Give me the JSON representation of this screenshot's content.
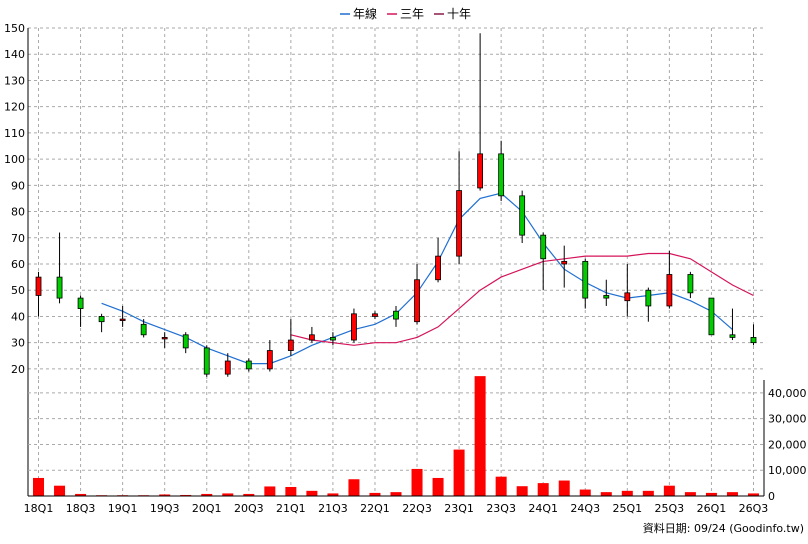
{
  "legend": {
    "items": [
      {
        "label": "年線",
        "color": "#1f6fd1"
      },
      {
        "label": "三年",
        "color": "#d4145a"
      },
      {
        "label": "十年",
        "color": "#8b1a4a"
      }
    ]
  },
  "footer": {
    "source": "資料日期: 09/24  (Goodinfo.tw)"
  },
  "colors": {
    "up": "#ff0000",
    "down": "#00cc00",
    "volume": "#ff0000",
    "grid": "#aaaaaa",
    "year_line": "#1f6fd1",
    "three_year_line": "#d4145a"
  },
  "chart_data": [
    {
      "type": "candlestick",
      "title": "",
      "ylim": [
        15,
        150
      ],
      "yticks": [
        20,
        30,
        40,
        50,
        60,
        70,
        80,
        90,
        100,
        110,
        120,
        130,
        140,
        150
      ],
      "grid": true,
      "legend_position": "top-center",
      "x_tick_labels": [
        "18Q1",
        "18Q3",
        "19Q1",
        "19Q3",
        "20Q1",
        "20Q3",
        "21Q1",
        "21Q3",
        "22Q1",
        "22Q3",
        "23Q1",
        "23Q3",
        "24Q1",
        "24Q3",
        "25Q1",
        "25Q3",
        "26Q1",
        "26Q3"
      ],
      "quarters": [
        {
          "q": "18Q1",
          "o": 48,
          "h": 57,
          "l": 40,
          "c": 55
        },
        {
          "q": "18Q2",
          "o": 55,
          "h": 72,
          "l": 45,
          "c": 47
        },
        {
          "q": "18Q3",
          "o": 47,
          "h": 48,
          "l": 36,
          "c": 43
        },
        {
          "q": "18Q4",
          "o": 40,
          "h": 41,
          "l": 34,
          "c": 38
        },
        {
          "q": "19Q1",
          "o": 39,
          "h": 44,
          "l": 36,
          "c": 39
        },
        {
          "q": "19Q2",
          "o": 37,
          "h": 39,
          "l": 32,
          "c": 33
        },
        {
          "q": "19Q3",
          "o": 32,
          "h": 34,
          "l": 28,
          "c": 32
        },
        {
          "q": "19Q4",
          "o": 33,
          "h": 34,
          "l": 26,
          "c": 28
        },
        {
          "q": "20Q1",
          "o": 28,
          "h": 29,
          "l": 17,
          "c": 18
        },
        {
          "q": "20Q2",
          "o": 18,
          "h": 26,
          "l": 17,
          "c": 23
        },
        {
          "q": "20Q3",
          "o": 23,
          "h": 24,
          "l": 19,
          "c": 20
        },
        {
          "q": "20Q4",
          "o": 20,
          "h": 31,
          "l": 19,
          "c": 27
        },
        {
          "q": "21Q1",
          "o": 27,
          "h": 39,
          "l": 25,
          "c": 31
        },
        {
          "q": "21Q2",
          "o": 31,
          "h": 36,
          "l": 30,
          "c": 33
        },
        {
          "q": "21Q3",
          "o": 32,
          "h": 34,
          "l": 29,
          "c": 31
        },
        {
          "q": "21Q4",
          "o": 31,
          "h": 43,
          "l": 30,
          "c": 41
        },
        {
          "q": "22Q1",
          "o": 40,
          "h": 42,
          "l": 39,
          "c": 41
        },
        {
          "q": "22Q2",
          "o": 42,
          "h": 44,
          "l": 36,
          "c": 39
        },
        {
          "q": "22Q3",
          "o": 38,
          "h": 60,
          "l": 37,
          "c": 54
        },
        {
          "q": "22Q4",
          "o": 54,
          "h": 70,
          "l": 53,
          "c": 63
        },
        {
          "q": "23Q1",
          "o": 63,
          "h": 103,
          "l": 60,
          "c": 88
        },
        {
          "q": "23Q2",
          "o": 89,
          "h": 148,
          "l": 88,
          "c": 102
        },
        {
          "q": "23Q3",
          "o": 102,
          "h": 107,
          "l": 84,
          "c": 86
        },
        {
          "q": "23Q4",
          "o": 86,
          "h": 88,
          "l": 68,
          "c": 71
        },
        {
          "q": "24Q1",
          "o": 71,
          "h": 72,
          "l": 50,
          "c": 62
        },
        {
          "q": "24Q2",
          "o": 60,
          "h": 67,
          "l": 51,
          "c": 61
        },
        {
          "q": "24Q3",
          "o": 61,
          "h": 62,
          "l": 43,
          "c": 47
        },
        {
          "q": "24Q4",
          "o": 48,
          "h": 54,
          "l": 44,
          "c": 47
        },
        {
          "q": "25Q1",
          "o": 46,
          "h": 60,
          "l": 40,
          "c": 49
        },
        {
          "q": "25Q2",
          "o": 50,
          "h": 51,
          "l": 38,
          "c": 44
        },
        {
          "q": "25Q3",
          "o": 44,
          "h": 65,
          "l": 43,
          "c": 56
        },
        {
          "q": "25Q4",
          "o": 56,
          "h": 57,
          "l": 47,
          "c": 49
        },
        {
          "q": "26Q1",
          "o": 47,
          "h": 47,
          "l": 33,
          "c": 33
        },
        {
          "q": "26Q2",
          "o": 33,
          "h": 43,
          "l": 31,
          "c": 32
        },
        {
          "q": "26Q3",
          "o": 32,
          "h": 37,
          "l": 29,
          "c": 30
        }
      ],
      "series": [
        {
          "name": "年線",
          "values": [
            null,
            null,
            null,
            45,
            42,
            38,
            35,
            32,
            28,
            25,
            22,
            22,
            25,
            29,
            32,
            35,
            37,
            41,
            49,
            61,
            77,
            85,
            87,
            80,
            68,
            58,
            53,
            49,
            47,
            48,
            49,
            46,
            42,
            35,
            null
          ]
        },
        {
          "name": "三年",
          "values": [
            null,
            null,
            null,
            null,
            null,
            null,
            null,
            null,
            null,
            null,
            null,
            null,
            33,
            31,
            30,
            29,
            30,
            30,
            32,
            36,
            43,
            50,
            55,
            58,
            61,
            62,
            63,
            63,
            63,
            64,
            64,
            62,
            57,
            52,
            48
          ]
        }
      ]
    },
    {
      "type": "bar",
      "title": "",
      "ylim": [
        0,
        45000
      ],
      "yticks": [
        0,
        10000,
        20000,
        30000,
        40000
      ],
      "ytick_labels": [
        "0",
        "10,000",
        "20,000",
        "30,000",
        "40,000"
      ],
      "values": [
        7000,
        4000,
        800,
        300,
        300,
        300,
        600,
        400,
        800,
        1000,
        800,
        3700,
        3500,
        2000,
        1000,
        6500,
        1200,
        1500,
        10500,
        7000,
        18000,
        46500,
        7500,
        3800,
        5000,
        6000,
        2500,
        1500,
        2000,
        2000,
        4000,
        1500,
        1200,
        1500,
        1000
      ]
    }
  ]
}
